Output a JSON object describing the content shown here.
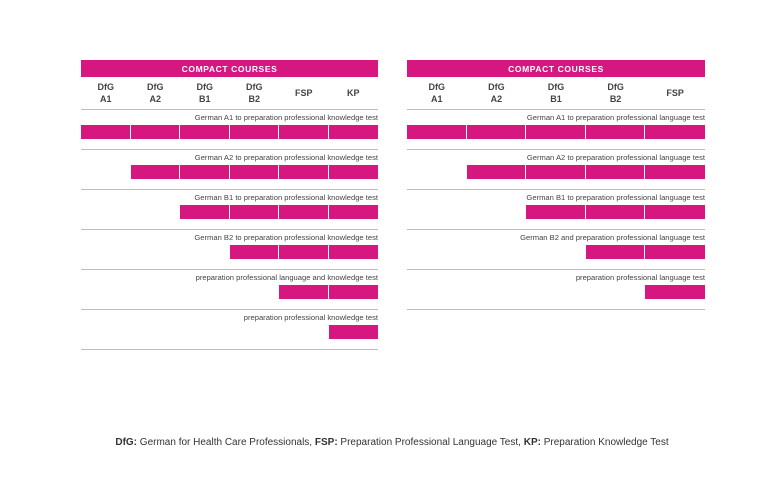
{
  "tables": [
    {
      "title": "COMPACT COURSES",
      "columns": [
        "DfG\nA1",
        "DfG\nA2",
        "DfG\nB1",
        "DfG\nB2",
        "FSP",
        "KP"
      ],
      "rows": [
        {
          "label": "German A1 to preparation professional knowledge test",
          "start": 0
        },
        {
          "label": "German A2 to preparation professional knowledge test",
          "start": 1
        },
        {
          "label": "German B1 to preparation professional knowledge test",
          "start": 2
        },
        {
          "label": "German B2 to preparation professional knowledge test",
          "start": 3
        },
        {
          "label": "preparation professional language and knowledge test",
          "start": 4
        },
        {
          "label": "preparation professional knowledge test",
          "start": 5
        }
      ]
    },
    {
      "title": "COMPACT COURSES",
      "columns": [
        "DfG\nA1",
        "DfG\nA2",
        "DfG\nB1",
        "DfG\nB2",
        "FSP"
      ],
      "rows": [
        {
          "label": "German A1 to preparation professional language test",
          "start": 0
        },
        {
          "label": "German A2 to preparation professional language test",
          "start": 1
        },
        {
          "label": "German B1 to preparation professional language test",
          "start": 2
        },
        {
          "label": "German B2 and preparation professional language test",
          "start": 3
        },
        {
          "label": "preparation professional language test",
          "start": 4
        }
      ]
    }
  ],
  "accent_color": "#d5177f",
  "footnote": {
    "dfg_key": "DfG:",
    "dfg_text": " German for Health Care Professionals, ",
    "fsp_key": "FSP:",
    "fsp_text": " Preparation Professional Language Test, ",
    "kp_key": "KP:",
    "kp_text": " Preparation Knowledge Test"
  }
}
